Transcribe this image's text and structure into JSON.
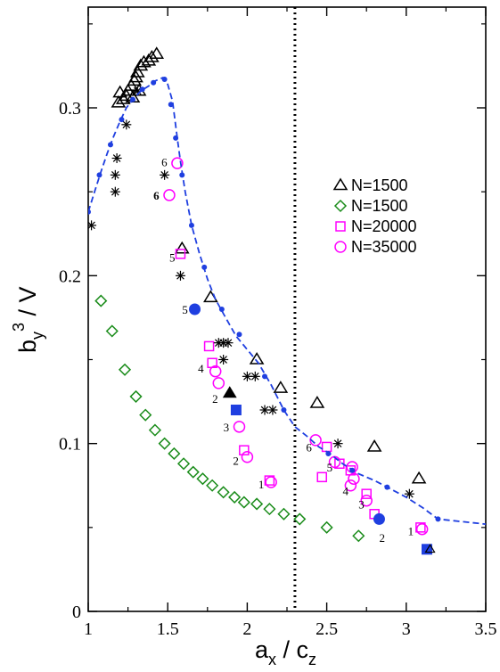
{
  "chart_data": {
    "type": "scatter",
    "xlim": [
      1,
      3.5
    ],
    "ylim": [
      0,
      0.36
    ],
    "x_ticks": [
      "1",
      "1.5",
      "2",
      "2.5",
      "3",
      "3.5"
    ],
    "y_ticks": [
      "0",
      "0.1",
      "0.2",
      "0.3"
    ],
    "x_tick_values": [
      1,
      1.5,
      2,
      2.5,
      3,
      3.5
    ],
    "y_tick_values": [
      0,
      0.1,
      0.2,
      0.3
    ],
    "xlabel": {
      "main": "a",
      "sub1": "x",
      "sep": " / c",
      "sub2": "z"
    },
    "ylabel": {
      "main": "b",
      "sub": "y",
      "sup": "3",
      "tail": " / V"
    },
    "vline_x": 2.3,
    "legend": {
      "position": "right",
      "entries": [
        "N=1500",
        "N=1500",
        "N=20000",
        "N=35000"
      ]
    },
    "colors": {
      "triangle": "#000000",
      "diamond": "#1a8c1a",
      "square": "#ff00ff",
      "circle": "#ff00ff",
      "curve": "#1f3fe0",
      "star": "#000000",
      "filled_circle": "#1f3fe0",
      "filled_square": "#1f3fe0"
    },
    "series": [
      {
        "name": "N=1500",
        "marker": "triangle",
        "points": [
          [
            1.19,
            0.303
          ],
          [
            1.2,
            0.309
          ],
          [
            1.22,
            0.305
          ],
          [
            1.24,
            0.307
          ],
          [
            1.25,
            0.31
          ],
          [
            1.27,
            0.313
          ],
          [
            1.29,
            0.316
          ],
          [
            1.3,
            0.318
          ],
          [
            1.31,
            0.321
          ],
          [
            1.33,
            0.325
          ],
          [
            1.35,
            0.327
          ],
          [
            1.38,
            0.328
          ],
          [
            1.4,
            0.33
          ],
          [
            1.43,
            0.332
          ],
          [
            1.32,
            0.31
          ],
          [
            1.28,
            0.306
          ],
          [
            1.59,
            0.216
          ],
          [
            1.77,
            0.187
          ],
          [
            2.06,
            0.15
          ],
          [
            2.21,
            0.133
          ],
          [
            2.44,
            0.124
          ],
          [
            2.8,
            0.098
          ],
          [
            3.08,
            0.079
          ]
        ]
      },
      {
        "name": "N=1500",
        "marker": "diamond",
        "points": [
          [
            1.08,
            0.185
          ],
          [
            1.15,
            0.167
          ],
          [
            1.23,
            0.144
          ],
          [
            1.3,
            0.128
          ],
          [
            1.36,
            0.117
          ],
          [
            1.42,
            0.108
          ],
          [
            1.48,
            0.1
          ],
          [
            1.54,
            0.094
          ],
          [
            1.6,
            0.088
          ],
          [
            1.66,
            0.083
          ],
          [
            1.72,
            0.079
          ],
          [
            1.78,
            0.075
          ],
          [
            1.85,
            0.071
          ],
          [
            1.92,
            0.068
          ],
          [
            1.98,
            0.065
          ],
          [
            2.06,
            0.064
          ],
          [
            2.14,
            0.061
          ],
          [
            2.23,
            0.058
          ],
          [
            2.33,
            0.055
          ],
          [
            2.5,
            0.05
          ],
          [
            2.7,
            0.045
          ]
        ]
      },
      {
        "name": "N=20000",
        "marker": "square",
        "points": [
          [
            1.58,
            0.213
          ],
          [
            1.76,
            0.158
          ],
          [
            1.78,
            0.148
          ],
          [
            1.98,
            0.096
          ],
          [
            2.14,
            0.078
          ],
          [
            2.5,
            0.098
          ],
          [
            2.47,
            0.08
          ],
          [
            2.58,
            0.088
          ],
          [
            2.65,
            0.084
          ],
          [
            2.75,
            0.07
          ],
          [
            2.8,
            0.058
          ],
          [
            3.09,
            0.05
          ]
        ]
      },
      {
        "name": "N=35000",
        "marker": "circle",
        "points": [
          [
            1.56,
            0.267
          ],
          [
            1.51,
            0.248
          ],
          [
            1.8,
            0.143
          ],
          [
            1.82,
            0.136
          ],
          [
            1.95,
            0.11
          ],
          [
            2.0,
            0.092
          ],
          [
            2.15,
            0.077
          ],
          [
            2.43,
            0.102
          ],
          [
            2.55,
            0.089
          ],
          [
            2.66,
            0.086
          ],
          [
            2.67,
            0.079
          ],
          [
            2.65,
            0.075
          ],
          [
            2.75,
            0.066
          ],
          [
            3.1,
            0.049
          ]
        ]
      },
      {
        "marker": "star",
        "points": [
          [
            1.02,
            0.23
          ],
          [
            1.17,
            0.25
          ],
          [
            1.17,
            0.26
          ],
          [
            1.18,
            0.27
          ],
          [
            1.24,
            0.29
          ],
          [
            1.31,
            0.31
          ],
          [
            1.48,
            0.26
          ],
          [
            1.58,
            0.2
          ],
          [
            1.82,
            0.16
          ],
          [
            1.85,
            0.16
          ],
          [
            1.88,
            0.16
          ],
          [
            1.85,
            0.15
          ],
          [
            2.0,
            0.14
          ],
          [
            2.05,
            0.14
          ],
          [
            2.11,
            0.12
          ],
          [
            2.16,
            0.12
          ],
          [
            2.57,
            0.1
          ],
          [
            3.02,
            0.07
          ]
        ]
      },
      {
        "marker": "curve",
        "points": [
          [
            1.0,
            0.238
          ],
          [
            1.04,
            0.25
          ],
          [
            1.08,
            0.262
          ],
          [
            1.12,
            0.273
          ],
          [
            1.16,
            0.283
          ],
          [
            1.2,
            0.292
          ],
          [
            1.24,
            0.3
          ],
          [
            1.28,
            0.305
          ],
          [
            1.33,
            0.31
          ],
          [
            1.38,
            0.313
          ],
          [
            1.42,
            0.316
          ],
          [
            1.47,
            0.318
          ],
          [
            1.5,
            0.314
          ],
          [
            1.53,
            0.304
          ],
          [
            1.56,
            0.282
          ],
          [
            1.58,
            0.268
          ],
          [
            1.61,
            0.25
          ],
          [
            1.65,
            0.23
          ],
          [
            1.7,
            0.213
          ],
          [
            1.75,
            0.198
          ],
          [
            1.8,
            0.186
          ],
          [
            1.87,
            0.174
          ],
          [
            1.93,
            0.164
          ],
          [
            2.0,
            0.156
          ],
          [
            2.07,
            0.148
          ],
          [
            2.15,
            0.135
          ],
          [
            2.23,
            0.12
          ],
          [
            2.3,
            0.11
          ],
          [
            2.38,
            0.104
          ],
          [
            2.45,
            0.098
          ],
          [
            2.52,
            0.094
          ],
          [
            2.6,
            0.088
          ],
          [
            2.7,
            0.082
          ],
          [
            2.8,
            0.078
          ],
          [
            2.9,
            0.073
          ],
          [
            3.0,
            0.068
          ],
          [
            3.1,
            0.062
          ],
          [
            3.2,
            0.055
          ],
          [
            3.3,
            0.054
          ],
          [
            3.4,
            0.053
          ],
          [
            3.5,
            0.052
          ]
        ]
      },
      {
        "marker": "curve-dots",
        "points": [
          [
            1.0,
            0.238
          ],
          [
            1.07,
            0.26
          ],
          [
            1.14,
            0.278
          ],
          [
            1.21,
            0.293
          ],
          [
            1.28,
            0.305
          ],
          [
            1.34,
            0.311
          ],
          [
            1.41,
            0.315
          ],
          [
            1.48,
            0.317
          ],
          [
            1.52,
            0.302
          ],
          [
            1.55,
            0.282
          ],
          [
            1.59,
            0.26
          ],
          [
            1.65,
            0.23
          ],
          [
            1.73,
            0.205
          ],
          [
            1.84,
            0.18
          ],
          [
            1.95,
            0.165
          ],
          [
            2.11,
            0.14
          ],
          [
            2.23,
            0.12
          ],
          [
            2.51,
            0.094
          ],
          [
            2.66,
            0.084
          ],
          [
            2.88,
            0.074
          ],
          [
            3.2,
            0.055
          ]
        ]
      },
      {
        "marker": "filled-circle",
        "points": [
          [
            1.67,
            0.18
          ],
          [
            2.83,
            0.055
          ]
        ]
      },
      {
        "marker": "filled-triangle",
        "points": [
          [
            1.89,
            0.13
          ]
        ]
      },
      {
        "marker": "filled-square",
        "points": [
          [
            1.93,
            0.12
          ],
          [
            3.13,
            0.037
          ]
        ]
      },
      {
        "marker": "triangle-small",
        "points": [
          [
            3.15,
            0.037
          ]
        ]
      }
    ],
    "annotations": [
      {
        "text": "6",
        "x": 1.46,
        "y": 0.268,
        "bold": false
      },
      {
        "text": "6",
        "x": 1.41,
        "y": 0.248,
        "bold": true
      },
      {
        "text": "5",
        "x": 1.51,
        "y": 0.211,
        "bold": false
      },
      {
        "text": "5",
        "x": 1.59,
        "y": 0.18,
        "bold": false
      },
      {
        "text": "4",
        "x": 1.69,
        "y": 0.145,
        "bold": false
      },
      {
        "text": "2",
        "x": 1.78,
        "y": 0.127,
        "bold": false
      },
      {
        "text": "3",
        "x": 1.85,
        "y": 0.11,
        "bold": false
      },
      {
        "text": "2",
        "x": 1.91,
        "y": 0.09,
        "bold": false
      },
      {
        "text": "1",
        "x": 2.07,
        "y": 0.076,
        "bold": false
      },
      {
        "text": "6",
        "x": 2.37,
        "y": 0.098,
        "bold": false
      },
      {
        "text": "5",
        "x": 2.5,
        "y": 0.086,
        "bold": false
      },
      {
        "text": "4",
        "x": 2.6,
        "y": 0.072,
        "bold": false
      },
      {
        "text": "3",
        "x": 2.7,
        "y": 0.064,
        "bold": false
      },
      {
        "text": "2",
        "x": 2.83,
        "y": 0.044,
        "bold": false
      },
      {
        "text": "1",
        "x": 3.01,
        "y": 0.048,
        "bold": false
      }
    ]
  }
}
